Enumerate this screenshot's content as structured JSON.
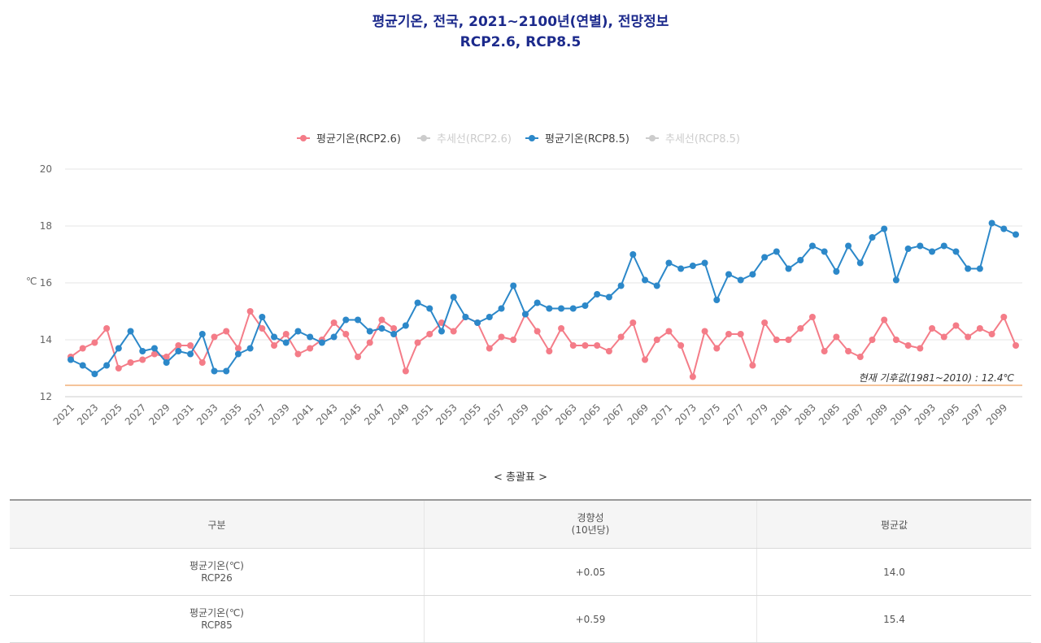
{
  "title_line1": "평균기온, 전국, 2021~2100년(연별), 전망정보",
  "title_line2": "RCP2.6, RCP8.5",
  "colors": {
    "rcp26": "#f47c88",
    "rcp85": "#2c88c9",
    "trend": "#cccccc",
    "baseline": "#f5c49a",
    "title": "#1c2a8c"
  },
  "chart_data": {
    "type": "line",
    "ylabel": "℃",
    "ylim": [
      12,
      20
    ],
    "yticks": [
      12,
      14,
      16,
      18,
      20
    ],
    "x_start": 2021,
    "x_end": 2100,
    "x_tick_labels": [
      "2021",
      "2023",
      "2025",
      "2027",
      "2029",
      "2031",
      "2033",
      "2035",
      "2037",
      "2039",
      "2041",
      "2043",
      "2045",
      "2047",
      "2049",
      "2051",
      "2053",
      "2055",
      "2057",
      "2059",
      "2061",
      "2063",
      "2065",
      "2067",
      "2069",
      "2071",
      "2073",
      "2075",
      "2077",
      "2079",
      "2081",
      "2083",
      "2085",
      "2087",
      "2089",
      "2091",
      "2093",
      "2095",
      "2097",
      "2099"
    ],
    "legend": [
      {
        "name": "평균기온(RCP2.6)",
        "color": "#f47c88",
        "visible": true
      },
      {
        "name": "추세선(RCP2.6)",
        "color": "#cccccc",
        "visible": false
      },
      {
        "name": "평균기온(RCP8.5)",
        "color": "#2c88c9",
        "visible": true
      },
      {
        "name": "추세선(RCP8.5)",
        "color": "#cccccc",
        "visible": false
      }
    ],
    "series": [
      {
        "name": "평균기온(RCP2.6)",
        "color": "#f47c88",
        "values": [
          13.4,
          13.7,
          13.9,
          14.4,
          13.0,
          13.2,
          13.3,
          13.5,
          13.4,
          13.8,
          13.8,
          13.2,
          14.1,
          14.3,
          13.7,
          15.0,
          14.4,
          13.8,
          14.2,
          13.5,
          13.7,
          14.0,
          14.6,
          14.2,
          13.4,
          13.9,
          14.7,
          14.4,
          12.9,
          13.9,
          14.2,
          14.6,
          14.3,
          14.8,
          14.6,
          13.7,
          14.1,
          14.0,
          14.9,
          14.3,
          13.6,
          14.4,
          13.8,
          13.8,
          13.8,
          13.6,
          14.1,
          14.6,
          13.3,
          14.0,
          14.3,
          13.8,
          12.7,
          14.3,
          13.7,
          14.2,
          14.2,
          13.1,
          14.6,
          14.0,
          14.0,
          14.4,
          14.8,
          13.6,
          14.1,
          13.6,
          13.4,
          14.0,
          14.7,
          14.0,
          13.8,
          13.7,
          14.4,
          14.1,
          14.5,
          14.1,
          14.4,
          14.2,
          14.8,
          13.8
        ]
      },
      {
        "name": "평균기온(RCP8.5)",
        "color": "#2c88c9",
        "values": [
          13.3,
          13.1,
          12.8,
          13.1,
          13.7,
          14.3,
          13.6,
          13.7,
          13.2,
          13.6,
          13.5,
          14.2,
          12.9,
          12.9,
          13.5,
          13.7,
          14.8,
          14.1,
          13.9,
          14.3,
          14.1,
          13.9,
          14.1,
          14.7,
          14.7,
          14.3,
          14.4,
          14.2,
          14.5,
          15.3,
          15.1,
          14.3,
          15.5,
          14.8,
          14.6,
          14.8,
          15.1,
          15.9,
          14.9,
          15.3,
          15.1,
          15.1,
          15.1,
          15.2,
          15.6,
          15.5,
          15.9,
          17.0,
          16.1,
          15.9,
          16.7,
          16.5,
          16.6,
          16.7,
          15.4,
          16.3,
          16.1,
          16.3,
          16.9,
          17.1,
          16.5,
          16.8,
          17.3,
          17.1,
          16.4,
          17.3,
          16.7,
          17.6,
          17.9,
          16.1,
          17.2,
          17.3,
          17.1,
          17.3,
          17.1,
          16.5,
          16.5,
          18.1,
          17.9,
          17.7
        ]
      }
    ],
    "baseline": {
      "value": 12.4,
      "label": "현재 기후값(1981~2010) : 12.4℃"
    }
  },
  "summary": {
    "caption": "< 총괄표 >",
    "headers": [
      "구분",
      "경향성",
      "(10년당)",
      "평균값"
    ],
    "rows": [
      {
        "name": "평균기온(℃)",
        "sub": "RCP26",
        "trend": "+0.05",
        "mean": "14.0"
      },
      {
        "name": "평균기온(℃)",
        "sub": "RCP85",
        "trend": "+0.59",
        "mean": "15.4"
      }
    ]
  }
}
